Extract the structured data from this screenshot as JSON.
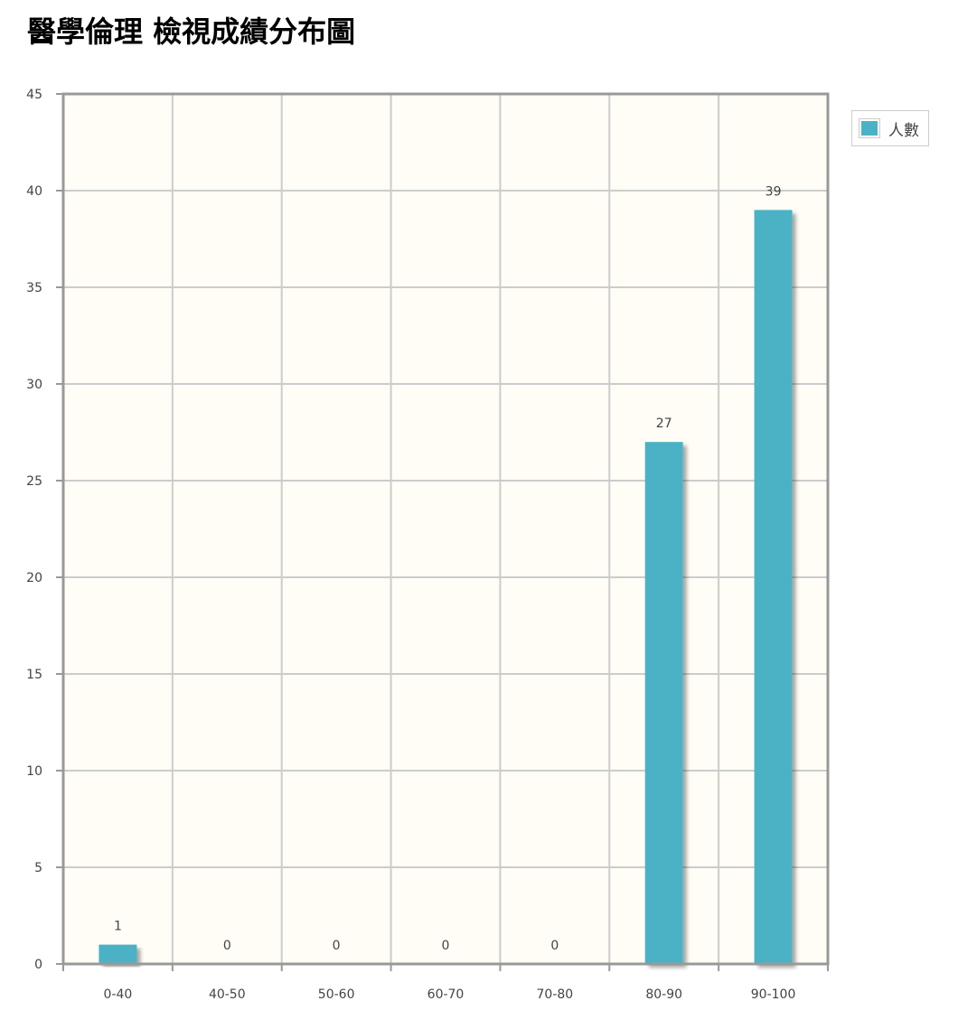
{
  "page": {
    "title": "醫學倫理 檢視成績分布圖"
  },
  "colors": {
    "bar": "#4bb2c5",
    "plot_background": "#fffdf6",
    "grid": "#cccccc",
    "axis": "#999999"
  },
  "chart_data": {
    "type": "bar",
    "title": "",
    "xlabel": "",
    "ylabel": "",
    "categories": [
      "0-40",
      "40-50",
      "50-60",
      "60-70",
      "70-80",
      "80-90",
      "90-100"
    ],
    "series": [
      {
        "name": "人數",
        "values": [
          1,
          0,
          0,
          0,
          0,
          27,
          39
        ]
      }
    ],
    "ylim": [
      0,
      45
    ],
    "yticks": [
      0,
      5,
      10,
      15,
      20,
      25,
      30,
      35,
      40,
      45
    ],
    "grid": true,
    "legend": "top-right outside",
    "data_labels": true
  }
}
